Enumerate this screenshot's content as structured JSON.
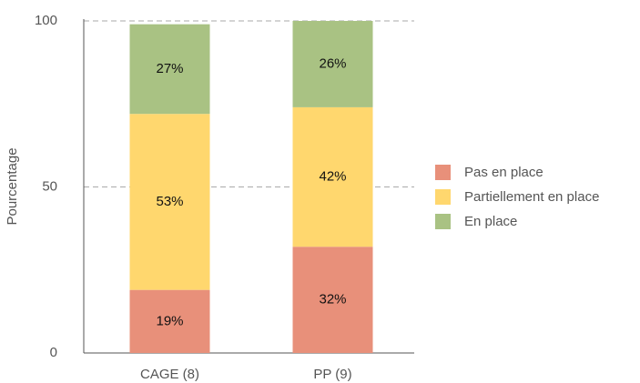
{
  "chart_data": {
    "type": "stacked_bar",
    "y_label": "Pourcentage",
    "categories": [
      "CAGE (8)",
      "PP (9)"
    ],
    "series": [
      {
        "name": "Pas en place",
        "color": "#e8907a",
        "values": [
          19,
          32
        ],
        "value_labels": [
          "19%",
          "32%"
        ]
      },
      {
        "name": "Partiellement en place",
        "color": "#ffd76e",
        "values": [
          53,
          42
        ],
        "value_labels": [
          "53%",
          "42%"
        ]
      },
      {
        "name": "En place",
        "color": "#a9c283",
        "values": [
          27,
          26
        ],
        "value_labels": [
          "27%",
          "26%"
        ]
      }
    ],
    "ylim": [
      0,
      100
    ],
    "yticks": [
      0,
      50,
      100
    ],
    "grid": true,
    "legend": "right"
  }
}
